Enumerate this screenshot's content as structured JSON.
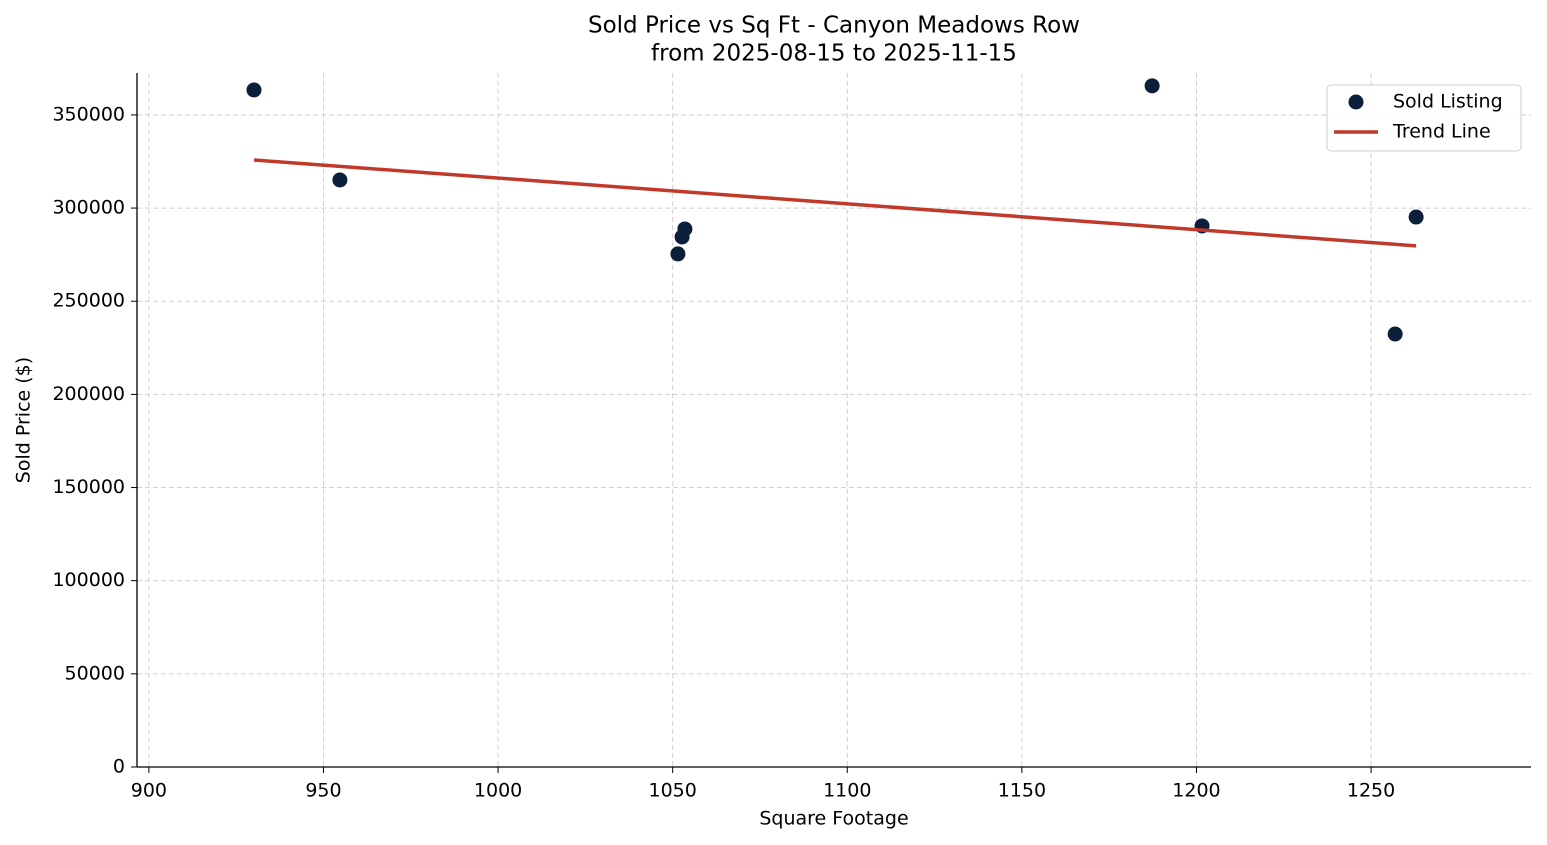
{
  "chart_data": {
    "type": "scatter",
    "title": "Sold Price vs Sq Ft - Canyon Meadows Row",
    "subtitle": "from 2025-08-15 to 2025-11-15",
    "x_label": "Square Footage",
    "y_label": "Sold Price ($)",
    "xlim": [
      896.6,
      1295.8
    ],
    "ylim": [
      0,
      372500
    ],
    "xticks": [
      900,
      950,
      1000,
      1050,
      1100,
      1150,
      1200,
      1250
    ],
    "yticks": [
      0,
      50000,
      100000,
      150000,
      200000,
      250000,
      300000,
      350000
    ],
    "grid": true,
    "legend": "upper right",
    "series": [
      {
        "name": "Sold Listing",
        "type": "scatter",
        "color": "#0b1f3a",
        "x": [
          930.1,
          954.7,
          1051.5,
          1052.7,
          1053.5,
          1187.3,
          1201.6,
          1256.9,
          1262.9
        ],
        "values": [
          363400,
          315100,
          275400,
          284500,
          288800,
          365600,
          290400,
          232400,
          295200
        ]
      },
      {
        "name": "Trend Line",
        "type": "line",
        "color": "#c0392b",
        "x": [
          930.1,
          1262.9
        ],
        "values": [
          325800,
          279700
        ]
      }
    ]
  }
}
